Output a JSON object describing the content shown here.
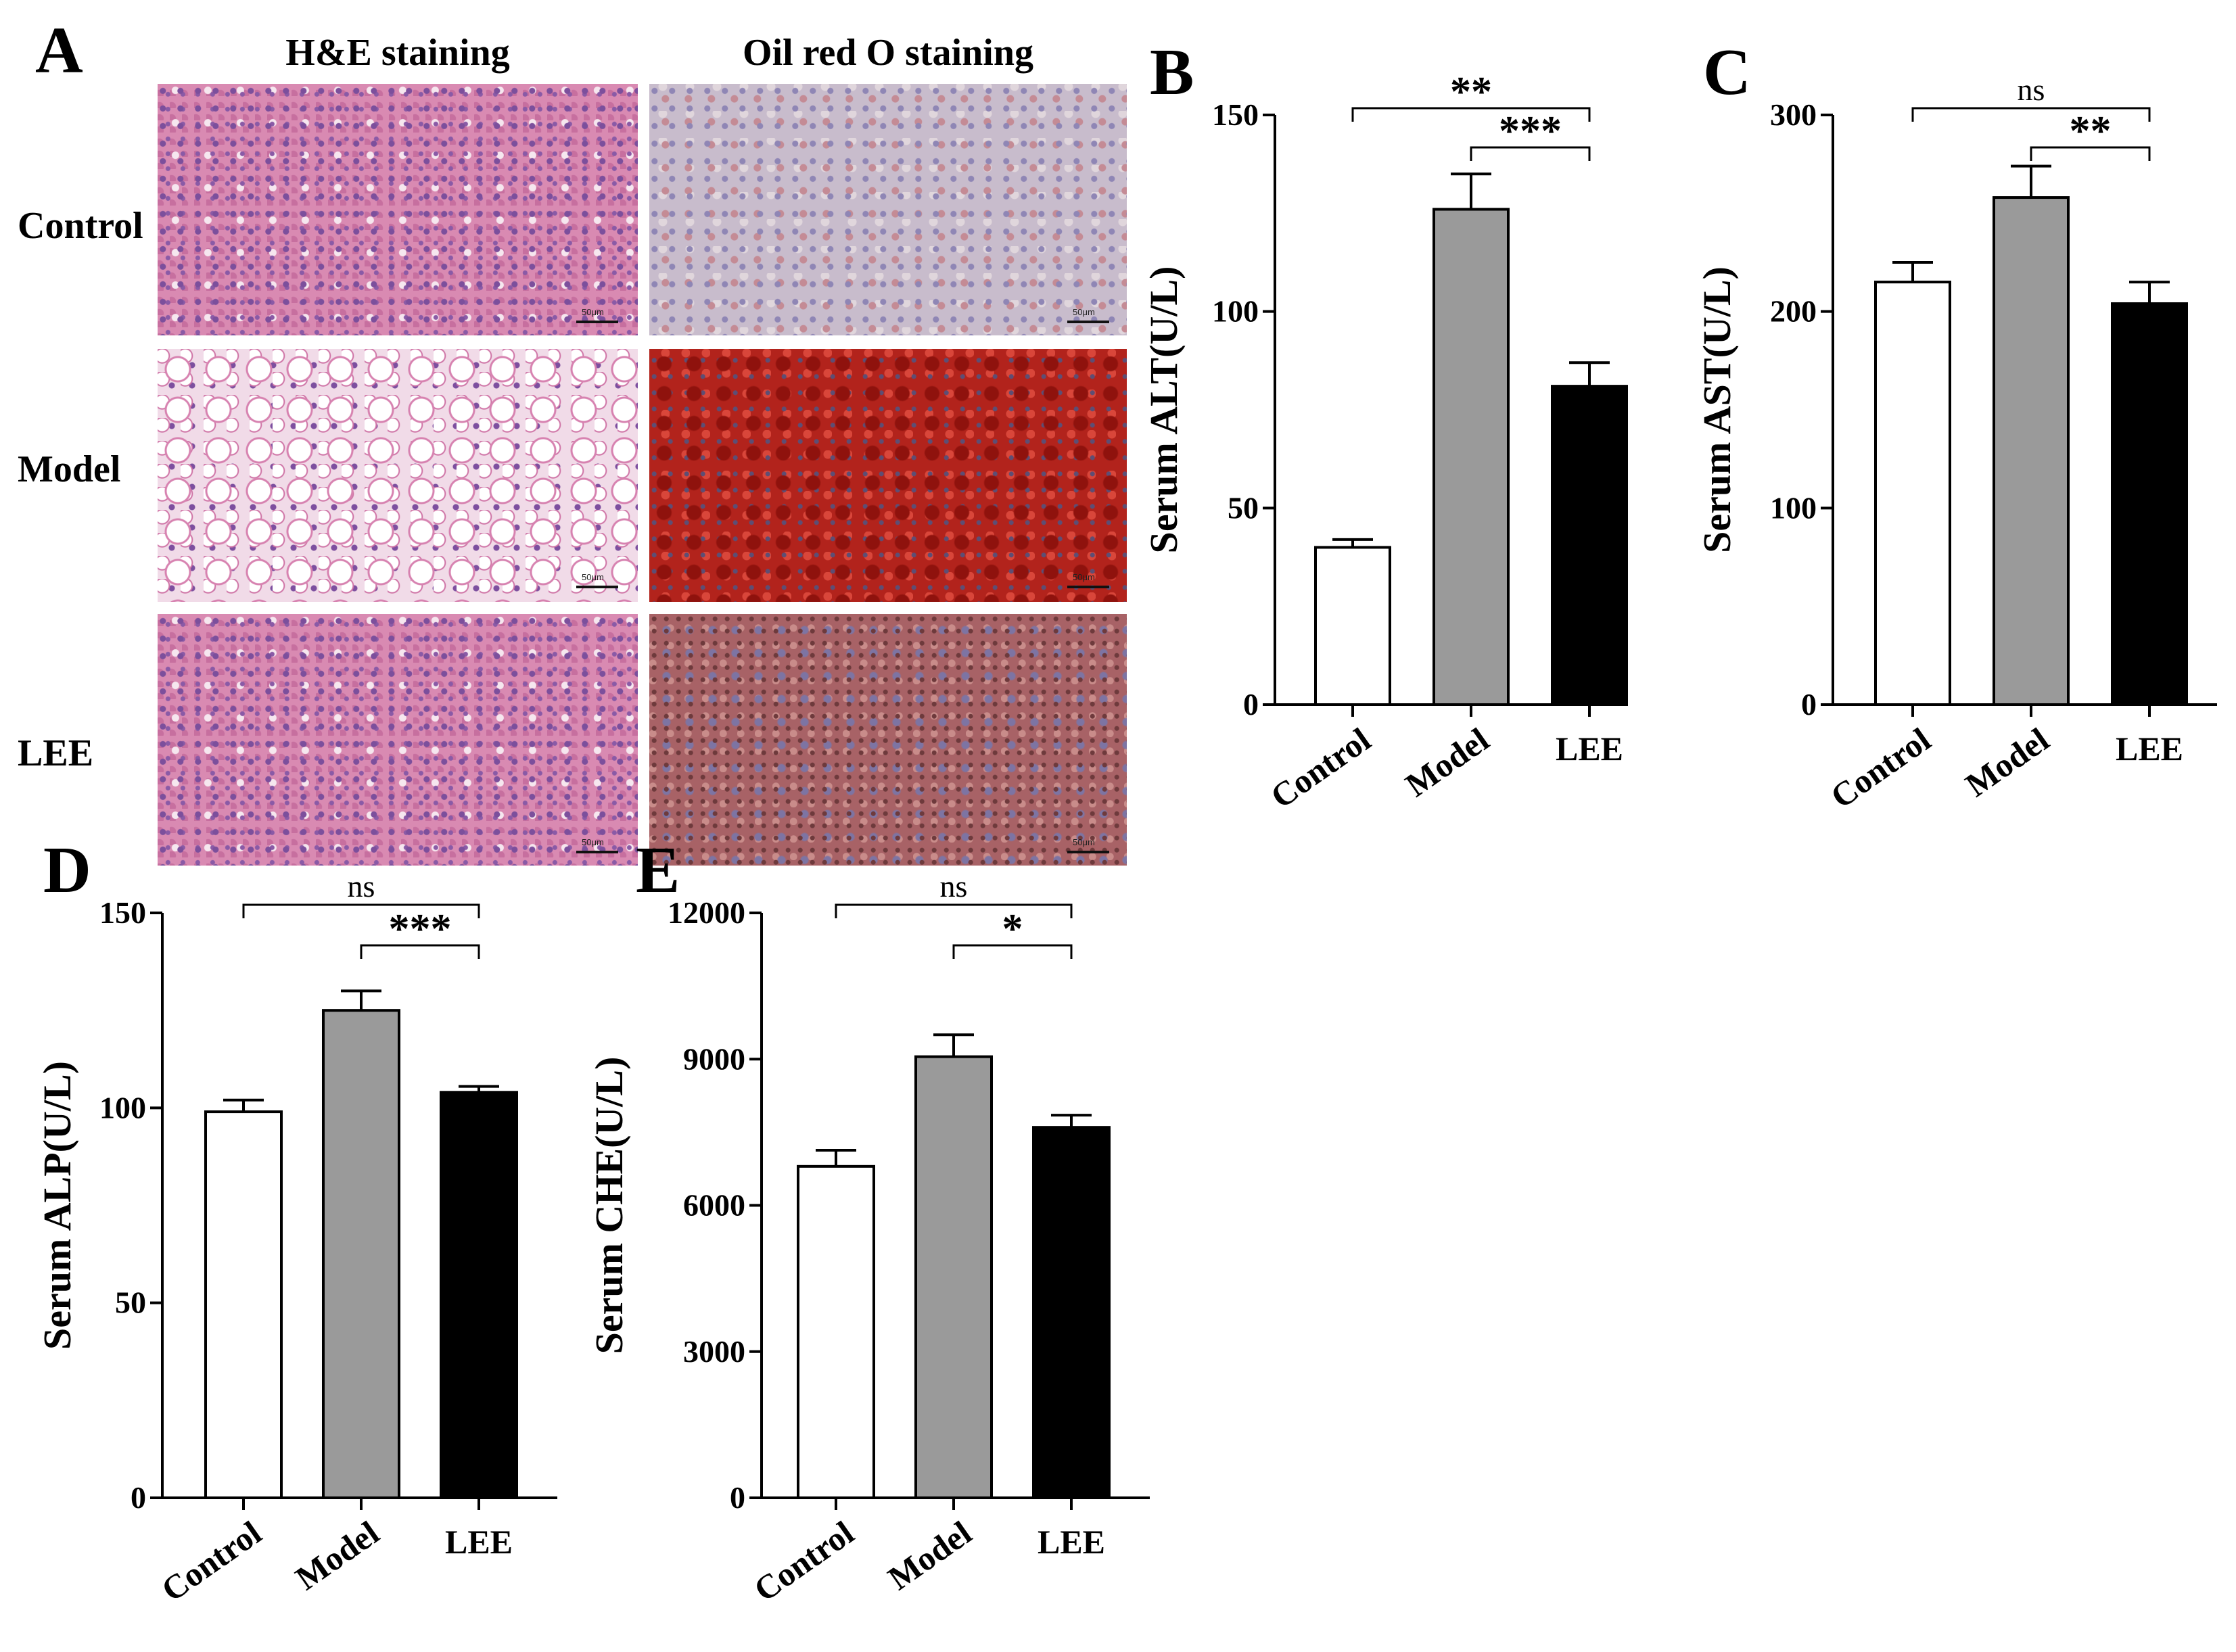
{
  "panel_a": {
    "label": "A",
    "column_titles": [
      "H&E staining",
      "Oil red O staining"
    ],
    "row_labels": [
      "Control",
      "Model",
      "LEE"
    ],
    "scale_text": "50μm"
  },
  "chart_data": [
    {
      "panel": "B",
      "type": "bar",
      "categories": [
        "Control",
        "Model",
        "LEE"
      ],
      "values": [
        40,
        126,
        81
      ],
      "error": [
        2,
        9,
        6
      ],
      "fills": [
        "#ffffff",
        "#9a9a9a",
        "#000000"
      ],
      "ylabel": "Serum ALT(U/L)",
      "ylim": [
        0,
        150
      ],
      "yticks": [
        0,
        50,
        100,
        150
      ],
      "significance": [
        {
          "from": 0,
          "to": 2,
          "label": "**"
        },
        {
          "from": 1,
          "to": 2,
          "label": "***"
        }
      ]
    },
    {
      "panel": "C",
      "type": "bar",
      "categories": [
        "Control",
        "Model",
        "LEE"
      ],
      "values": [
        215,
        258,
        204
      ],
      "error": [
        10,
        16,
        11
      ],
      "fills": [
        "#ffffff",
        "#9a9a9a",
        "#000000"
      ],
      "ylabel": "Serum AST(U/L)",
      "ylim": [
        0,
        300
      ],
      "yticks": [
        0,
        100,
        200,
        300
      ],
      "significance": [
        {
          "from": 0,
          "to": 2,
          "label": "ns"
        },
        {
          "from": 1,
          "to": 2,
          "label": "**"
        }
      ]
    },
    {
      "panel": "D",
      "type": "bar",
      "categories": [
        "Control",
        "Model",
        "LEE"
      ],
      "values": [
        99,
        125,
        104
      ],
      "error": [
        3,
        5,
        1.5
      ],
      "fills": [
        "#ffffff",
        "#9a9a9a",
        "#000000"
      ],
      "ylabel": "Serum ALP(U/L)",
      "ylim": [
        0,
        150
      ],
      "yticks": [
        0,
        50,
        100,
        150
      ],
      "significance": [
        {
          "from": 0,
          "to": 2,
          "label": "ns"
        },
        {
          "from": 1,
          "to": 2,
          "label": "***"
        }
      ]
    },
    {
      "panel": "E",
      "type": "bar",
      "categories": [
        "Control",
        "Model",
        "LEE"
      ],
      "values": [
        6800,
        9050,
        7600
      ],
      "error": [
        330,
        450,
        250
      ],
      "fills": [
        "#ffffff",
        "#9a9a9a",
        "#000000"
      ],
      "ylabel": "Serum CHE(U/L)",
      "ylim": [
        0,
        12000
      ],
      "yticks": [
        0,
        3000,
        6000,
        9000,
        12000
      ],
      "significance": [
        {
          "from": 0,
          "to": 2,
          "label": "ns"
        },
        {
          "from": 1,
          "to": 2,
          "label": "*"
        }
      ]
    }
  ]
}
